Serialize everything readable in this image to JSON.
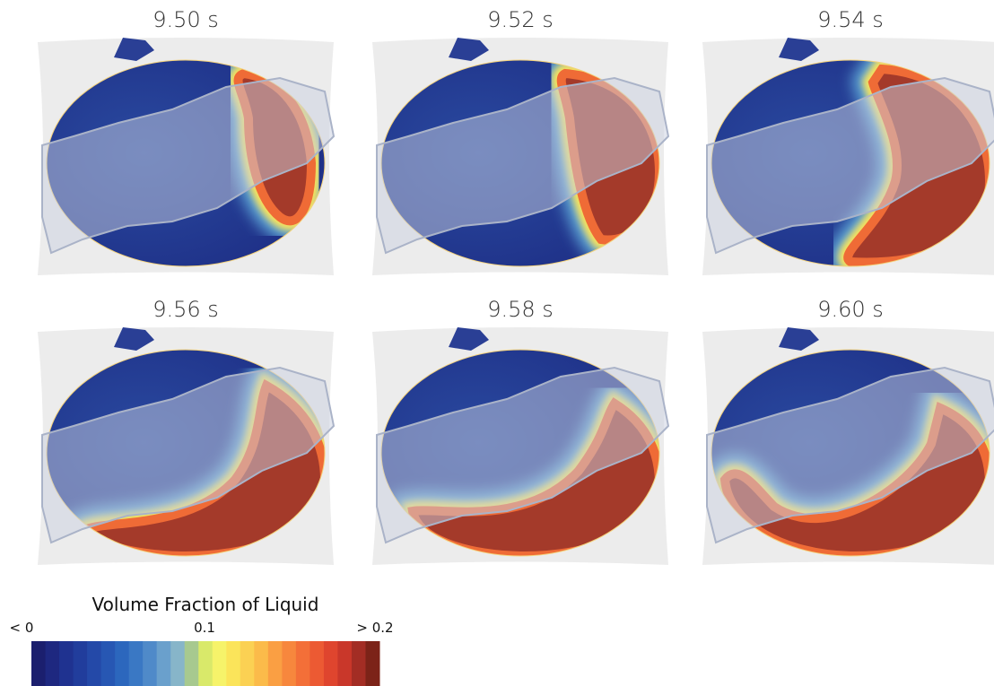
{
  "panels": [
    {
      "time": "9.50 s"
    },
    {
      "time": "9.52 s"
    },
    {
      "time": "9.54 s"
    },
    {
      "time": "9.56 s"
    },
    {
      "time": "9.58 s"
    },
    {
      "time": "9.60 s"
    }
  ],
  "colorbar": {
    "title": "Volume Fraction of Liquid",
    "ticks": [
      "< 0",
      "0.1",
      "> 0.2"
    ]
  }
}
